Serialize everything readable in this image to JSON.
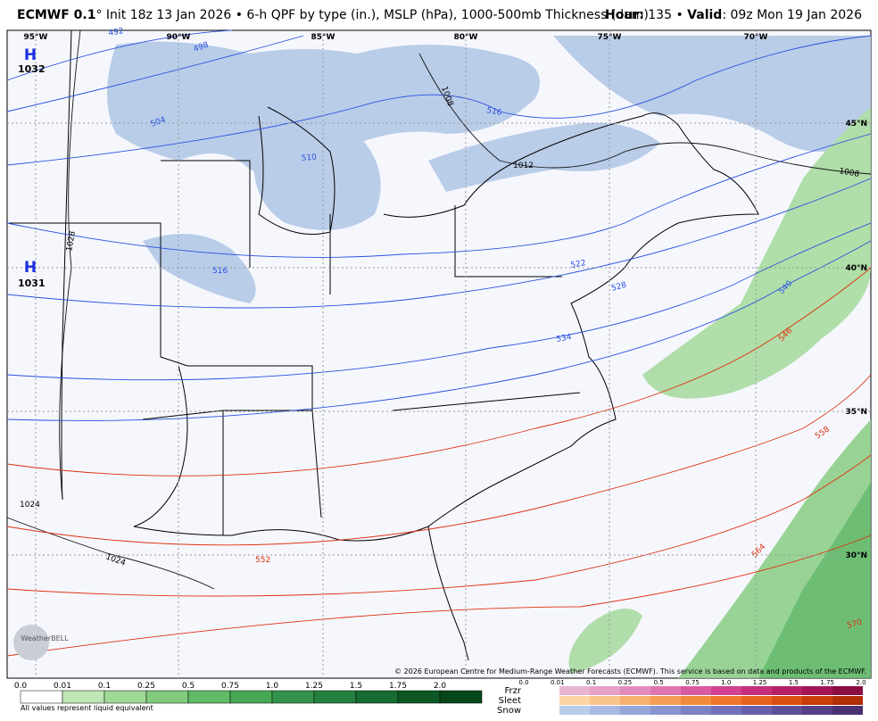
{
  "header": {
    "model": "ECMWF 0.1",
    "rest": "° Init 18z 13 Jan 2026 • 6-h QPF by type (in.), MSLP (hPa), 1000-500mb Thickness (dam)",
    "hour_label": "Hour:",
    "hour_value": " 135 • ",
    "valid_label": "Valid",
    "valid_value": ": 09z Mon 19 Jan 2026"
  },
  "map": {
    "longitudes": [
      "95°W",
      "90°W",
      "85°W",
      "80°W",
      "75°W",
      "70°W"
    ],
    "latitudes": [
      "45°N",
      "40°N",
      "35°N",
      "30°N"
    ],
    "highs": [
      {
        "symbol": "H",
        "pressure": "1032"
      },
      {
        "symbol": "H",
        "pressure": "1031"
      }
    ],
    "isobar_labels": [
      "1028",
      "1024",
      "1024",
      "1008",
      "1012",
      "1008"
    ],
    "thickness_cold_labels": [
      "492",
      "498",
      "504",
      "510",
      "516",
      "516",
      "522",
      "528",
      "534",
      "540"
    ],
    "thickness_warm_labels": [
      "546",
      "558",
      "552",
      "564",
      "570"
    ],
    "logo": "WeatherBELL",
    "copyright": "© 2026 European Centre for Medium-Range Weather Forecasts (ECMWF). This service is based on data and products of the ECMWF."
  },
  "legend": {
    "rain_ticks": [
      "0.0",
      "0.01",
      "0.1",
      "0.25",
      "0.5",
      "0.75",
      "1.0",
      "1.25",
      "1.5",
      "1.75",
      "2.0"
    ],
    "rain_colors": [
      "#ffffff",
      "#bfe6b5",
      "#9fd996",
      "#80cb7d",
      "#62bb66",
      "#47a854",
      "#34934a",
      "#24803e",
      "#166c31",
      "#0c5825",
      "#05461b"
    ],
    "note": "All values represent liquid equivalent",
    "mix_ticks": [
      "0.0",
      "0.01",
      "0.1",
      "0.25",
      "0.5",
      "0.75",
      "1.0",
      "1.25",
      "1.5",
      "1.75",
      "2.0"
    ],
    "mix_types": [
      {
        "name": "Frzr",
        "colors": [
          "#e7b4d2",
          "#e6a0c8",
          "#e38bbd",
          "#df74b0",
          "#d95aa1",
          "#d24290",
          "#c72f7c",
          "#b72168",
          "#a31554",
          "#8b0c42"
        ]
      },
      {
        "name": "Sleet",
        "colors": [
          "#fbd4a5",
          "#f9c38a",
          "#f7b06e",
          "#f59e55",
          "#f28a3e",
          "#ee762a",
          "#e6611b",
          "#d94f12",
          "#c73e0b",
          "#b02f06"
        ]
      },
      {
        "name": "Snow",
        "colors": [
          "#b9cde9",
          "#a8b9e1",
          "#97a6d9",
          "#8994cf",
          "#7c82c4",
          "#7270b8",
          "#695fa9",
          "#5f4f98",
          "#553f85",
          "#4a3172"
        ]
      }
    ]
  }
}
